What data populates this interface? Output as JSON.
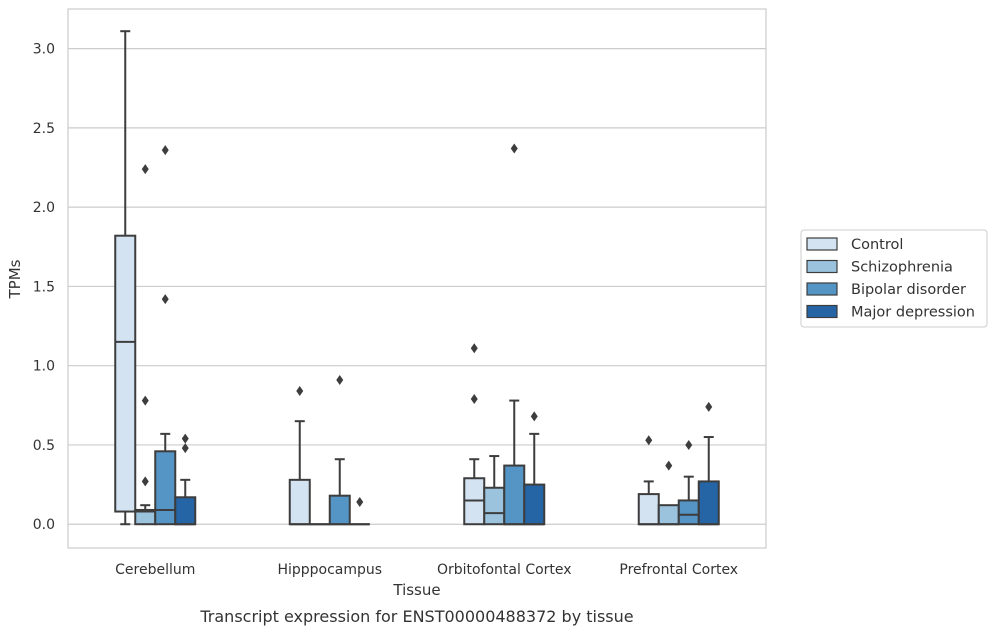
{
  "chart_data": {
    "type": "box",
    "title": "",
    "caption": "Transcript expression for ENST00000488372 by tissue",
    "xlabel": "Tissue",
    "ylabel": "TPMs",
    "ylim": [
      -0.15,
      3.25
    ],
    "yticks": [
      0.0,
      0.5,
      1.0,
      1.5,
      2.0,
      2.5,
      3.0
    ],
    "ytick_labels": [
      "0.0",
      "0.5",
      "1.0",
      "1.5",
      "2.0",
      "2.5",
      "3.0"
    ],
    "grid": "horizontal",
    "legend_position": "right",
    "categories": [
      "Cerebellum",
      "Hipppocampus",
      "Orbitofontal Cortex",
      "Prefrontal Cortex"
    ],
    "series": [
      {
        "name": "Control",
        "color": "#d3e3f2",
        "boxes": [
          {
            "q1": 0.08,
            "median": 1.15,
            "q3": 1.82,
            "whisker_low": 0.0,
            "whisker_high": 3.11,
            "outliers": []
          },
          {
            "q1": 0.0,
            "median": 0.0,
            "q3": 0.28,
            "whisker_low": 0.0,
            "whisker_high": 0.65,
            "outliers": [
              0.84
            ]
          },
          {
            "q1": 0.0,
            "median": 0.15,
            "q3": 0.29,
            "whisker_low": 0.0,
            "whisker_high": 0.41,
            "outliers": [
              0.79,
              1.11
            ]
          },
          {
            "q1": 0.0,
            "median": 0.0,
            "q3": 0.19,
            "whisker_low": 0.0,
            "whisker_high": 0.27,
            "outliers": [
              0.53
            ]
          }
        ]
      },
      {
        "name": "Schizophrenia",
        "color": "#9cc3de",
        "boxes": [
          {
            "q1": 0.0,
            "median": 0.08,
            "q3": 0.09,
            "whisker_low": 0.0,
            "whisker_high": 0.12,
            "outliers": [
              0.27,
              0.78,
              2.24
            ]
          },
          {
            "q1": 0.0,
            "median": 0.0,
            "q3": 0.0,
            "whisker_low": 0.0,
            "whisker_high": 0.0,
            "outliers": []
          },
          {
            "q1": 0.0,
            "median": 0.07,
            "q3": 0.23,
            "whisker_low": 0.0,
            "whisker_high": 0.43,
            "outliers": []
          },
          {
            "q1": 0.0,
            "median": 0.0,
            "q3": 0.12,
            "whisker_low": 0.0,
            "whisker_high": 0.12,
            "outliers": [
              0.37
            ]
          }
        ]
      },
      {
        "name": "Bipolar disorder",
        "color": "#5595c5",
        "boxes": [
          {
            "q1": 0.0,
            "median": 0.09,
            "q3": 0.46,
            "whisker_low": 0.0,
            "whisker_high": 0.57,
            "outliers": [
              1.42,
              2.36
            ]
          },
          {
            "q1": 0.0,
            "median": 0.0,
            "q3": 0.18,
            "whisker_low": 0.0,
            "whisker_high": 0.41,
            "outliers": [
              0.91
            ]
          },
          {
            "q1": 0.0,
            "median": 0.0,
            "q3": 0.37,
            "whisker_low": 0.0,
            "whisker_high": 0.78,
            "outliers": [
              2.37
            ]
          },
          {
            "q1": 0.0,
            "median": 0.06,
            "q3": 0.15,
            "whisker_low": 0.0,
            "whisker_high": 0.3,
            "outliers": [
              0.5
            ]
          }
        ]
      },
      {
        "name": "Major depression",
        "color": "#2565a5",
        "boxes": [
          {
            "q1": 0.0,
            "median": 0.0,
            "q3": 0.17,
            "whisker_low": 0.0,
            "whisker_high": 0.28,
            "outliers": [
              0.48,
              0.54
            ]
          },
          {
            "q1": 0.0,
            "median": 0.0,
            "q3": 0.0,
            "whisker_low": 0.0,
            "whisker_high": 0.0,
            "outliers": [
              0.14
            ]
          },
          {
            "q1": 0.0,
            "median": 0.0,
            "q3": 0.25,
            "whisker_low": 0.0,
            "whisker_high": 0.57,
            "outliers": [
              0.68
            ]
          },
          {
            "q1": 0.0,
            "median": 0.0,
            "q3": 0.27,
            "whisker_low": 0.0,
            "whisker_high": 0.55,
            "outliers": [
              0.74
            ]
          }
        ]
      }
    ]
  }
}
